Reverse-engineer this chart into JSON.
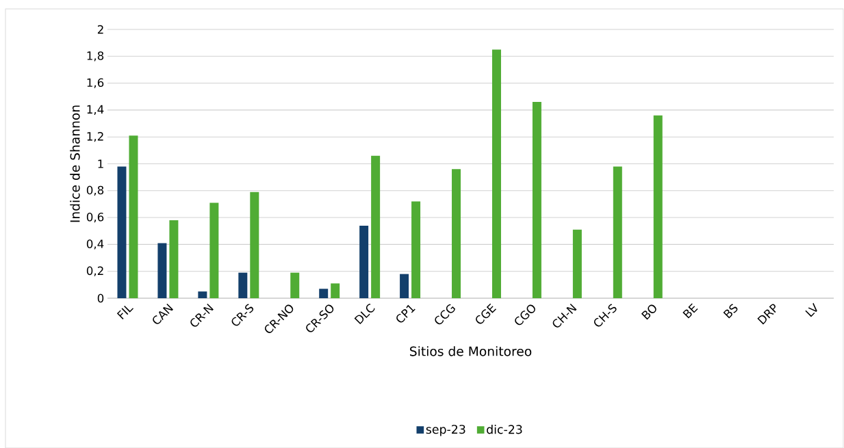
{
  "chart_data": {
    "type": "bar",
    "xlabel": "Sitios de Monitoreo",
    "ylabel": "Indice de Shannon",
    "categories": [
      "FIL",
      "CAN",
      "CR-N",
      "CR-S",
      "CR-NO",
      "CR-SO",
      "DLC",
      "CP1",
      "CCG",
      "CGE",
      "CGO",
      "CH-N",
      "CH-S",
      "BO",
      "BE",
      "BS",
      "DRP",
      "LV"
    ],
    "series": [
      {
        "name": "sep-23",
        "color": "#133f6b",
        "values": [
          0.98,
          0.41,
          0.05,
          0.19,
          null,
          0.07,
          0.54,
          0.18,
          null,
          null,
          null,
          null,
          null,
          null,
          null,
          null,
          null,
          null
        ]
      },
      {
        "name": "dic-23",
        "color": "#50ac34",
        "values": [
          1.21,
          0.58,
          0.71,
          0.79,
          0.19,
          0.11,
          1.06,
          0.72,
          0.96,
          1.85,
          1.46,
          0.51,
          0.98,
          1.36,
          null,
          null,
          null,
          null
        ]
      }
    ],
    "ylim": [
      0,
      2
    ],
    "yticks": [
      {
        "value": 0,
        "label": "0"
      },
      {
        "value": 0.2,
        "label": "0,2"
      },
      {
        "value": 0.4,
        "label": "0,4"
      },
      {
        "value": 0.6,
        "label": "0,6"
      },
      {
        "value": 0.8,
        "label": "0,8"
      },
      {
        "value": 1,
        "label": "1"
      },
      {
        "value": 1.2,
        "label": "1,2"
      },
      {
        "value": 1.4,
        "label": "1,4"
      },
      {
        "value": 1.6,
        "label": "1,6"
      },
      {
        "value": 1.8,
        "label": "1,8"
      },
      {
        "value": 2,
        "label": "2"
      }
    ],
    "grid": "y",
    "legend": "bottom"
  }
}
